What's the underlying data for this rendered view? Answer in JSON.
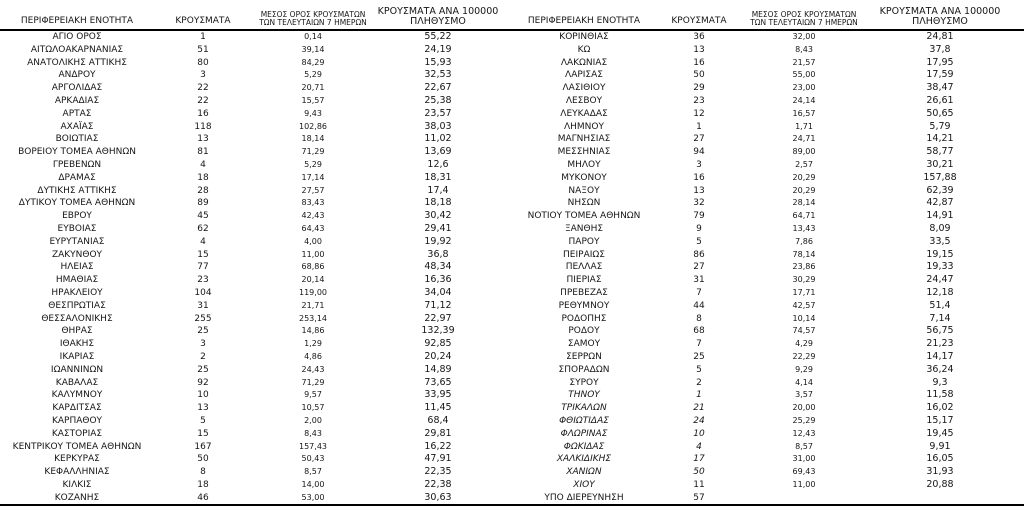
{
  "table": {
    "headers": {
      "region": "ΠΕΡΙΦΕΡΕΙΑΚΗ ΕΝΟΤΗΤΑ",
      "cases": "ΚΡΟΥΣΜΑΤΑ",
      "avg7_line1": "ΜΕΣΟΣ ΟΡΟΣ ΚΡΟΥΣΜΑΤΩΝ",
      "avg7_line2": "ΤΩΝ ΤΕΛΕΥΤΑΙΩΝ 7 ΗΜΕΡΩΝ",
      "per100k_line1": "ΚΡΟΥΣΜΑΤΑ ΑΝΑ 100000",
      "per100k_line2": "ΠΛΗΘΥΣΜΟ"
    },
    "left_rows": [
      {
        "region": "ΑΓΙΟ ΟΡΟΣ",
        "cases": "1",
        "avg7": "0,14",
        "per100k": "55,22"
      },
      {
        "region": "ΑΙΤΩΛΟΑΚΑΡΝΑΝΙΑΣ",
        "cases": "51",
        "avg7": "39,14",
        "per100k": "24,19"
      },
      {
        "region": "ΑΝΑΤΟΛΙΚΗΣ ΑΤΤΙΚΗΣ",
        "cases": "80",
        "avg7": "84,29",
        "per100k": "15,93"
      },
      {
        "region": "ΑΝΔΡΟΥ",
        "cases": "3",
        "avg7": "5,29",
        "per100k": "32,53"
      },
      {
        "region": "ΑΡΓΟΛΙΔΑΣ",
        "cases": "22",
        "avg7": "20,71",
        "per100k": "22,67"
      },
      {
        "region": "ΑΡΚΑΔΙΑΣ",
        "cases": "22",
        "avg7": "15,57",
        "per100k": "25,38"
      },
      {
        "region": "ΑΡΤΑΣ",
        "cases": "16",
        "avg7": "9,43",
        "per100k": "23,57"
      },
      {
        "region": "ΑΧΑΪΑΣ",
        "cases": "118",
        "avg7": "102,86",
        "per100k": "38,03"
      },
      {
        "region": "ΒΟΙΩΤΙΑΣ",
        "cases": "13",
        "avg7": "18,14",
        "per100k": "11,02"
      },
      {
        "region": "ΒΟΡΕΙΟΥ ΤΟΜΕΑ ΑΘΗΝΩΝ",
        "cases": "81",
        "avg7": "71,29",
        "per100k": "13,69"
      },
      {
        "region": "ΓΡΕΒΕΝΩΝ",
        "cases": "4",
        "avg7": "5,29",
        "per100k": "12,6"
      },
      {
        "region": "ΔΡΑΜΑΣ",
        "cases": "18",
        "avg7": "17,14",
        "per100k": "18,31"
      },
      {
        "region": "ΔΥΤΙΚΗΣ ΑΤΤΙΚΗΣ",
        "cases": "28",
        "avg7": "27,57",
        "per100k": "17,4"
      },
      {
        "region": "ΔΥΤΙΚΟΥ ΤΟΜΕΑ ΑΘΗΝΩΝ",
        "cases": "89",
        "avg7": "83,43",
        "per100k": "18,18"
      },
      {
        "region": "ΕΒΡΟΥ",
        "cases": "45",
        "avg7": "42,43",
        "per100k": "30,42"
      },
      {
        "region": "ΕΥΒΟΙΑΣ",
        "cases": "62",
        "avg7": "64,43",
        "per100k": "29,41"
      },
      {
        "region": "ΕΥΡΥΤΑΝΙΑΣ",
        "cases": "4",
        "avg7": "4,00",
        "per100k": "19,92"
      },
      {
        "region": "ΖΑΚΥΝΘΟΥ",
        "cases": "15",
        "avg7": "11,00",
        "per100k": "36,8"
      },
      {
        "region": "ΗΛΕΙΑΣ",
        "cases": "77",
        "avg7": "68,86",
        "per100k": "48,34"
      },
      {
        "region": "ΗΜΑΘΙΑΣ",
        "cases": "23",
        "avg7": "20,14",
        "per100k": "16,36"
      },
      {
        "region": "ΗΡΑΚΛΕΙΟΥ",
        "cases": "104",
        "avg7": "119,00",
        "per100k": "34,04"
      },
      {
        "region": "ΘΕΣΠΡΩΤΙΑΣ",
        "cases": "31",
        "avg7": "21,71",
        "per100k": "71,12"
      },
      {
        "region": "ΘΕΣΣΑΛΟΝΙΚΗΣ",
        "cases": "255",
        "avg7": "253,14",
        "per100k": "22,97"
      },
      {
        "region": "ΘΗΡΑΣ",
        "cases": "25",
        "avg7": "14,86",
        "per100k": "132,39"
      },
      {
        "region": "ΙΘΑΚΗΣ",
        "cases": "3",
        "avg7": "1,29",
        "per100k": "92,85"
      },
      {
        "region": "ΙΚΑΡΙΑΣ",
        "cases": "2",
        "avg7": "4,86",
        "per100k": "20,24"
      },
      {
        "region": "ΙΩΑΝΝΙΝΩΝ",
        "cases": "25",
        "avg7": "24,43",
        "per100k": "14,89"
      },
      {
        "region": "ΚΑΒΑΛΑΣ",
        "cases": "92",
        "avg7": "71,29",
        "per100k": "73,65"
      },
      {
        "region": "ΚΑΛΥΜΝΟΥ",
        "cases": "10",
        "avg7": "9,57",
        "per100k": "33,95"
      },
      {
        "region": "ΚΑΡΔΙΤΣΑΣ",
        "cases": "13",
        "avg7": "10,57",
        "per100k": "11,45"
      },
      {
        "region": "ΚΑΡΠΑΘΟΥ",
        "cases": "5",
        "avg7": "2,00",
        "per100k": "68,4"
      },
      {
        "region": "ΚΑΣΤΟΡΙΑΣ",
        "cases": "15",
        "avg7": "8,43",
        "per100k": "29,81"
      },
      {
        "region": "ΚΕΝΤΡΙΚΟΥ ΤΟΜΕΑ ΑΘΗΝΩΝ",
        "cases": "167",
        "avg7": "157,43",
        "per100k": "16,22"
      },
      {
        "region": "ΚΕΡΚΥΡΑΣ",
        "cases": "50",
        "avg7": "50,43",
        "per100k": "47,91"
      },
      {
        "region": "ΚΕΦΑΛΛΗΝΙΑΣ",
        "cases": "8",
        "avg7": "8,57",
        "per100k": "22,35"
      },
      {
        "region": "ΚΙΛΚΙΣ",
        "cases": "18",
        "avg7": "14,00",
        "per100k": "22,38"
      },
      {
        "region": "ΚΟΖΑΝΗΣ",
        "cases": "46",
        "avg7": "53,00",
        "per100k": "30,63"
      }
    ],
    "right_rows": [
      {
        "region": "ΚΟΡΙΝΘΙΑΣ",
        "cases": "36",
        "avg7": "32,00",
        "per100k": "24,81"
      },
      {
        "region": "ΚΩ",
        "cases": "13",
        "avg7": "8,43",
        "per100k": "37,8"
      },
      {
        "region": "ΛΑΚΩΝΙΑΣ",
        "cases": "16",
        "avg7": "21,57",
        "per100k": "17,95"
      },
      {
        "region": "ΛΑΡΙΣΑΣ",
        "cases": "50",
        "avg7": "55,00",
        "per100k": "17,59"
      },
      {
        "region": "ΛΑΣΙΘΙΟΥ",
        "cases": "29",
        "avg7": "23,00",
        "per100k": "38,47"
      },
      {
        "region": "ΛΕΣΒΟΥ",
        "cases": "23",
        "avg7": "24,14",
        "per100k": "26,61"
      },
      {
        "region": "ΛΕΥΚΑΔΑΣ",
        "cases": "12",
        "avg7": "16,57",
        "per100k": "50,65"
      },
      {
        "region": "ΛΗΜΝΟΥ",
        "cases": "1",
        "avg7": "1,71",
        "per100k": "5,79"
      },
      {
        "region": "ΜΑΓΝΗΣΙΑΣ",
        "cases": "27",
        "avg7": "24,71",
        "per100k": "14,21"
      },
      {
        "region": "ΜΕΣΣΗΝΙΑΣ",
        "cases": "94",
        "avg7": "89,00",
        "per100k": "58,77"
      },
      {
        "region": "ΜΗΛΟΥ",
        "cases": "3",
        "avg7": "2,57",
        "per100k": "30,21"
      },
      {
        "region": "ΜΥΚΟΝΟΥ",
        "cases": "16",
        "avg7": "20,29",
        "per100k": "157,88"
      },
      {
        "region": "ΝΑΞΟΥ",
        "cases": "13",
        "avg7": "20,29",
        "per100k": "62,39"
      },
      {
        "region": "ΝΗΣΩΝ",
        "cases": "32",
        "avg7": "28,14",
        "per100k": "42,87"
      },
      {
        "region": "ΝΟΤΙΟΥ ΤΟΜΕΑ ΑΘΗΝΩΝ",
        "cases": "79",
        "avg7": "64,71",
        "per100k": "14,91"
      },
      {
        "region": "ΞΑΝΘΗΣ",
        "cases": "9",
        "avg7": "13,43",
        "per100k": "8,09"
      },
      {
        "region": "ΠΑΡΟΥ",
        "cases": "5",
        "avg7": "7,86",
        "per100k": "33,5"
      },
      {
        "region": "ΠΕΙΡΑΙΩΣ",
        "cases": "86",
        "avg7": "78,14",
        "per100k": "19,15"
      },
      {
        "region": "ΠΕΛΛΑΣ",
        "cases": "27",
        "avg7": "23,86",
        "per100k": "19,33"
      },
      {
        "region": "ΠΙΕΡΙΑΣ",
        "cases": "31",
        "avg7": "30,29",
        "per100k": "24,47"
      },
      {
        "region": "ΠΡΕΒΕΖΑΣ",
        "cases": "7",
        "avg7": "17,71",
        "per100k": "12,18"
      },
      {
        "region": "ΡΕΘΥΜΝΟΥ",
        "cases": "44",
        "avg7": "42,57",
        "per100k": "51,4"
      },
      {
        "region": "ΡΟΔΟΠΗΣ",
        "cases": "8",
        "avg7": "10,14",
        "per100k": "7,14"
      },
      {
        "region": "ΡΟΔΟΥ",
        "cases": "68",
        "avg7": "74,57",
        "per100k": "56,75"
      },
      {
        "region": "ΣΑΜΟΥ",
        "cases": "7",
        "avg7": "4,29",
        "per100k": "21,23"
      },
      {
        "region": "ΣΕΡΡΩΝ",
        "cases": "25",
        "avg7": "22,29",
        "per100k": "14,17"
      },
      {
        "region": "ΣΠΟΡΑΔΩΝ",
        "cases": "5",
        "avg7": "9,29",
        "per100k": "36,24"
      },
      {
        "region": "ΣΥΡΟΥ",
        "cases": "2",
        "avg7": "4,14",
        "per100k": "9,3"
      },
      {
        "region": "ΤΗΝΟΥ",
        "cases": "1",
        "avg7": "3,57",
        "per100k": "11,58",
        "italic": "name_cases"
      },
      {
        "region": "ΤΡΙΚΑΛΩΝ",
        "cases": "21",
        "avg7": "20,00",
        "per100k": "16,02",
        "italic": "name_cases"
      },
      {
        "region": "ΦΘΙΩΤΙΔΑΣ",
        "cases": "24",
        "avg7": "25,29",
        "per100k": "15,17",
        "italic": "name_cases"
      },
      {
        "region": "ΦΛΩΡΙΝΑΣ",
        "cases": "10",
        "avg7": "12,43",
        "per100k": "19,45",
        "italic": "name_cases"
      },
      {
        "region": "ΦΩΚΙΔΑΣ",
        "cases": "4",
        "avg7": "8,57",
        "per100k": "9,91",
        "italic": "name_cases"
      },
      {
        "region": "ΧΑΛΚΙΔΙΚΗΣ",
        "cases": "17",
        "avg7": "31,00",
        "per100k": "16,05",
        "italic": "name_cases"
      },
      {
        "region": "ΧΑΝΙΩΝ",
        "cases": "50",
        "avg7": "69,43",
        "per100k": "31,93",
        "italic": "name_cases"
      },
      {
        "region": "ΧΙΟΥ",
        "cases": "11",
        "avg7": "11,00",
        "per100k": "20,88",
        "italic": "name"
      },
      {
        "region": "ΥΠΟ ΔΙΕΡΕΥΝΗΣΗ",
        "cases": "57",
        "avg7": "",
        "per100k": ""
      }
    ]
  }
}
